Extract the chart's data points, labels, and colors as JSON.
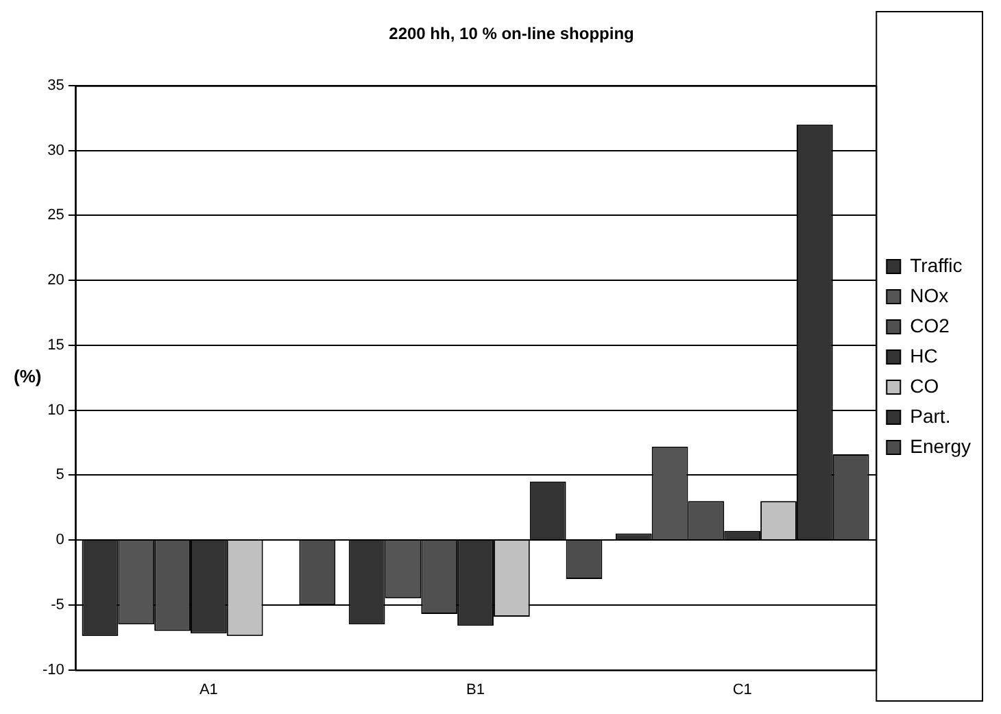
{
  "chart_data": {
    "type": "bar",
    "title": "2200 hh, 10 % on-line shopping",
    "ylabel": "(%)",
    "categories": [
      "A1",
      "B1",
      "C1"
    ],
    "series": [
      {
        "name": "Traffic",
        "color": "#333333",
        "values": [
          -7.4,
          -6.5,
          0.5
        ]
      },
      {
        "name": "NOx",
        "color": "#555555",
        "values": [
          -6.5,
          -4.5,
          7.2
        ]
      },
      {
        "name": "CO2",
        "color": "#505050",
        "values": [
          -7.0,
          -5.7,
          3.0
        ]
      },
      {
        "name": "HC",
        "color": "#333333",
        "values": [
          -7.2,
          -6.6,
          0.7
        ]
      },
      {
        "name": "CO",
        "color": "#c0c0c0",
        "values": [
          -7.4,
          -5.9,
          3.0
        ]
      },
      {
        "name": "Part.",
        "color": "#333333",
        "values": [
          null,
          4.5,
          32.0
        ]
      },
      {
        "name": "Energy",
        "color": "#4d4d4d",
        "values": [
          -5.0,
          -3.0,
          6.6
        ]
      }
    ],
    "ylim": [
      -10,
      35
    ],
    "yticks": [
      -10,
      -5,
      0,
      5,
      10,
      15,
      20,
      25,
      30,
      35
    ],
    "grid": "y",
    "legend": "right"
  }
}
